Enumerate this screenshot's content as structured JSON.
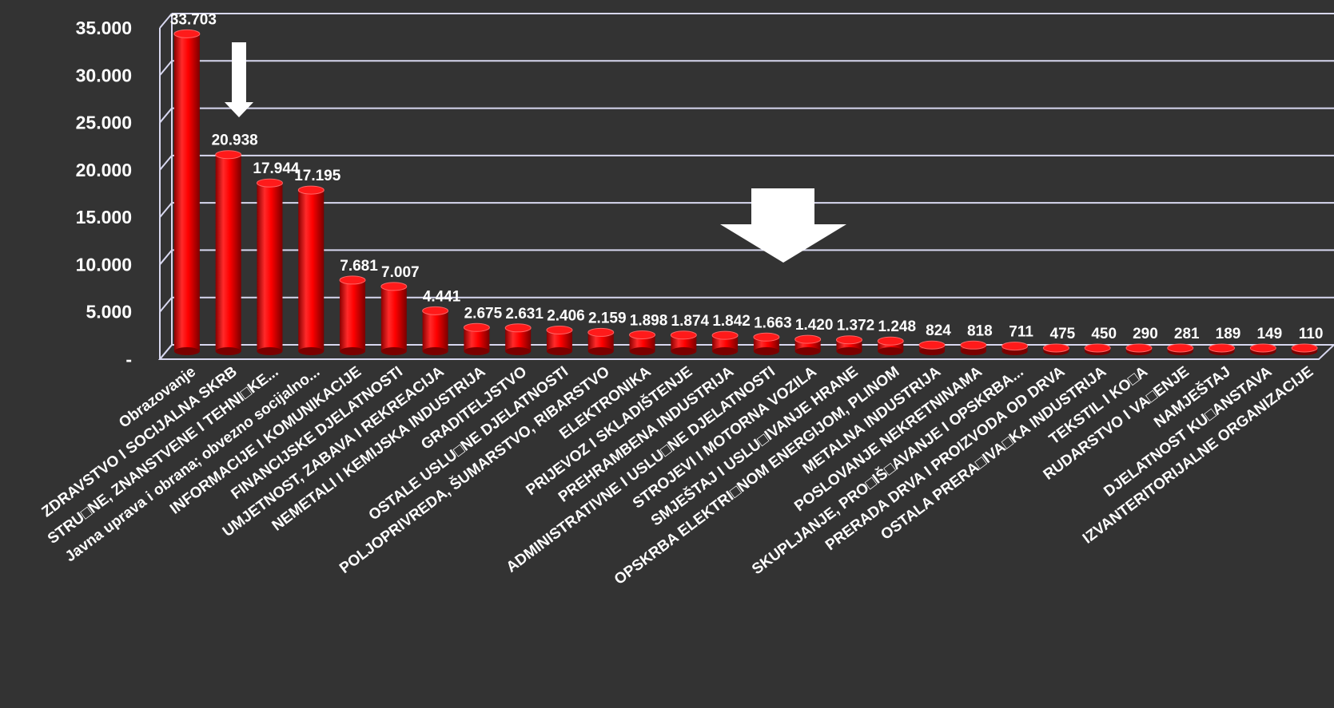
{
  "chart_data": {
    "type": "bar",
    "title": "",
    "xlabel": "",
    "ylabel": "",
    "ylim": [
      0,
      35000
    ],
    "yticks": [
      {
        "value": 0,
        "label": "-"
      },
      {
        "value": 5000,
        "label": "5.000"
      },
      {
        "value": 10000,
        "label": "10.000"
      },
      {
        "value": 15000,
        "label": "15.000"
      },
      {
        "value": 20000,
        "label": "20.000"
      },
      {
        "value": 25000,
        "label": "25.000"
      },
      {
        "value": 30000,
        "label": "30.000"
      },
      {
        "value": 35000,
        "label": "35.000"
      }
    ],
    "grid": true,
    "bar_color": "#ff0000",
    "grid_color": "#d8d8f0",
    "annotation_color": "#ffffff",
    "annotations": [
      "arrow-down-small",
      "arrow-down-large"
    ],
    "categories": [
      "Obrazovanje",
      "ZDRAVSTVO I SOCIJALNA SKRB",
      "STRU□NE, ZNANSTVENE I TEHNI□KE...",
      "Javna uprava i obrana; obvezno socijalno...",
      "INFORMACIJE I KOMUNIKACIJE",
      "FINANCIJSKE DJELATNOSTI",
      "UMJETNOST, ZABAVA I REKREACIJA",
      "NEMETALI I KEMIJSKA INDUSTRIJA",
      "GRADITELJSTVO",
      "OSTALE USLU□NE DJELATNOSTI",
      "POLJOPRIVREDA, ŠUMARSTVO, RIBARSTVO",
      "ELEKTRONIKA",
      "PRIJEVOZ I SKLADIŠTENJE",
      "PREHRAMBENA INDUSTRIJA",
      "ADMINISTRATIVNE I USLU□NE DJELATNOSTI",
      "STROJEVI I MOTORNA VOZILA",
      "SMJEŠTAJ I USLU□IVANJE HRANE",
      "OPSKRBA ELEKTRI□NOM ENERGIJOM, PLINOM",
      "METALNA INDUSTRIJA",
      "POSLOVANJE NEKRETNINAMA",
      "SKUPLJANJE, PRO□IŠ□AVANJE I OPSKRBA...",
      "PRERADA DRVA I PROIZVODA OD DRVA",
      "OSTALA PRERA□IVA□KA INDUSTRIJA",
      "TEKSTIL I KO□A",
      "RUDARSTVO I VA□ENJE",
      "NAMJEŠTAJ",
      "DJELATNOST KU□ANSTAVA",
      "IZVANTERITORIJALNE ORGANIZACIJE"
    ],
    "values": [
      33703,
      20938,
      17944,
      17195,
      7681,
      7007,
      4441,
      2675,
      2631,
      2406,
      2159,
      1898,
      1874,
      1842,
      1663,
      1420,
      1372,
      1248,
      824,
      818,
      711,
      475,
      450,
      290,
      281,
      189,
      149,
      110
    ],
    "value_labels": [
      "33.703",
      "20.938",
      "17.944",
      "17.195",
      "7.681",
      "7.007",
      "4.441",
      "2.675",
      "2.631",
      "2.406",
      "2.159",
      "1.898",
      "1.874",
      "1.842",
      "1.663",
      "1.420",
      "1.372",
      "1.248",
      "824",
      "818",
      "711",
      "475",
      "450",
      "290",
      "281",
      "189",
      "149",
      "110"
    ]
  }
}
